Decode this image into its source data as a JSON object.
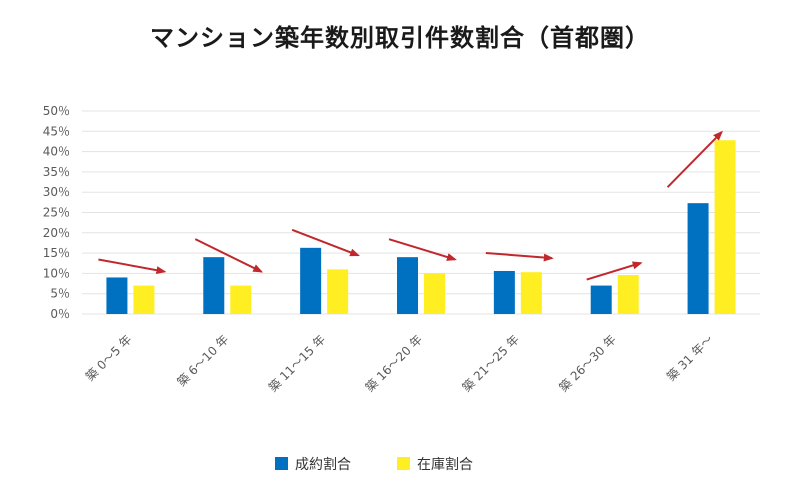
{
  "chart_data": {
    "type": "bar",
    "title": "マンション築年数別取引件数割合（首都圏）",
    "xlabel": "",
    "ylabel": "",
    "ylim": [
      0,
      50
    ],
    "yticks": [
      "0％",
      "5％",
      "10％",
      "15％",
      "20％",
      "25％",
      "30％",
      "35％",
      "40％",
      "45％",
      "50％"
    ],
    "grid": true,
    "legend_position": "bottom",
    "categories": [
      "築 0～5 年",
      "築 6～10 年",
      "築 11～15 年",
      "築 16～20 年",
      "築 21～25 年",
      "築 26～30 年",
      "築 31 年～"
    ],
    "series": [
      {
        "name": "成約割合",
        "color": "#0070c0",
        "values": [
          9.0,
          14.0,
          16.3,
          14.0,
          10.6,
          7.0,
          27.3
        ]
      },
      {
        "name": "在庫割合",
        "color": "#ffee22",
        "values": [
          7.0,
          7.0,
          11.0,
          10.0,
          10.3,
          9.6,
          42.8
        ]
      }
    ],
    "annotations": {
      "arrow_color": "#c0282d",
      "trend_arrows": [
        {
          "category": "築 0～5 年",
          "direction": "down"
        },
        {
          "category": "築 6～10 年",
          "direction": "down"
        },
        {
          "category": "築 11～15 年",
          "direction": "down"
        },
        {
          "category": "築 16～20 年",
          "direction": "down"
        },
        {
          "category": "築 21～25 年",
          "direction": "down"
        },
        {
          "category": "築 26～30 年",
          "direction": "up"
        },
        {
          "category": "築 31 年～",
          "direction": "up"
        }
      ]
    }
  }
}
